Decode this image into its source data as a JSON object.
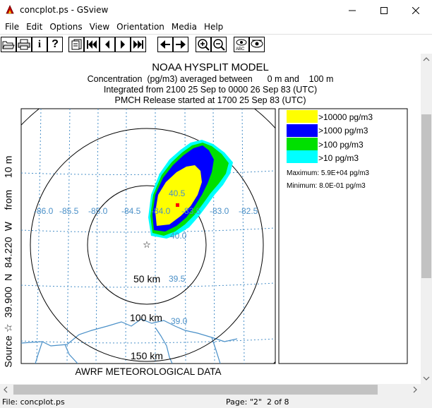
{
  "window": {
    "title": "concplot.ps - GSview"
  },
  "menu": [
    "File",
    "Edit",
    "Options",
    "View",
    "Orientation",
    "Media",
    "Help"
  ],
  "toolbar": {
    "buttons": [
      "open-icon",
      "print-icon",
      "info-icon",
      "help-icon",
      "goto-page-icon",
      "first-page-icon",
      "prev-page-icon",
      "next-page-icon",
      "last-page-icon",
      "back-icon",
      "forward-icon",
      "zoom-in-icon",
      "zoom-out-icon",
      "display-settings-icon",
      "eye-icon"
    ]
  },
  "plot": {
    "title": "NOAA HYSPLIT MODEL",
    "line2": "Concentration  (pg/m3) averaged between      0 m and    100 m",
    "line3": "Integrated from 2100 25 Sep to 0000 26 Sep 83 (UTC)",
    "line4": "PMCH Release started at 1700 25 Sep 83 (UTC)",
    "source_label": "Source ☆  39.900  N  84.220  W    from    10 m",
    "met_label": "AWRF METEOROLOGICAL DATA",
    "lon_labels": [
      "-86.0",
      "-85.5",
      "-85.0",
      "-84.5",
      "-84.0",
      "-83.5",
      "-83.0",
      "-82.5"
    ],
    "lat_labels": [
      "40.5",
      "40.0",
      "39.5",
      "39.0"
    ],
    "ring_labels": [
      "50 km",
      "100 km",
      "150 km"
    ]
  },
  "legend": {
    "items": [
      {
        "label": ">10000 pg/m3",
        "color": "#ffff00"
      },
      {
        "label": ">1000 pg/m3",
        "color": "#0000ff"
      },
      {
        "label": ">100 pg/m3",
        "color": "#00e000"
      },
      {
        "label": ">10 pg/m3",
        "color": "#00ffff"
      }
    ],
    "maximum": "Maximum: 5.9E+04 pg/m3",
    "minimum": "Minimum: 8.0E-01 pg/m3"
  },
  "status": {
    "file": "File: concplot.ps",
    "page": "Page: \"2\"  2 of 8"
  },
  "colors": {
    "grid": "#4a90c8",
    "plume_yellow": "#ffff00",
    "plume_blue": "#0000ff",
    "plume_green": "#00e000",
    "plume_cyan": "#00ffff",
    "max_marker": "#ff0000"
  }
}
